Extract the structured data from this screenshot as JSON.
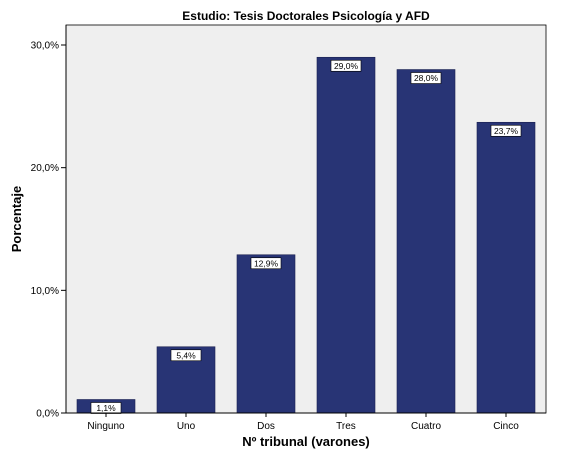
{
  "chart_data": {
    "type": "bar",
    "title": "Estudio: Tesis Doctorales Psicología y AFD",
    "xlabel": "Nº tribunal (varones)",
    "ylabel": "Porcentaje",
    "categories": [
      "Ninguno",
      "Uno",
      "Dos",
      "Tres",
      "Cuatro",
      "Cinco"
    ],
    "values": [
      1.1,
      5.4,
      12.9,
      29.0,
      28.0,
      23.7
    ],
    "data_labels": [
      "1,1%",
      "5,4%",
      "12,9%",
      "29,0%",
      "28,0%",
      "23,7%"
    ],
    "y_ticks": [
      0,
      10,
      20,
      30
    ],
    "y_tick_labels": [
      "0,0%",
      "10,0%",
      "20,0%",
      "30,0%"
    ],
    "ylim": [
      0,
      30
    ],
    "grid": false,
    "legend": "none",
    "colors": {
      "bar": "#283475",
      "plot_background": "#efefef",
      "page_background": "#ffffff"
    }
  }
}
